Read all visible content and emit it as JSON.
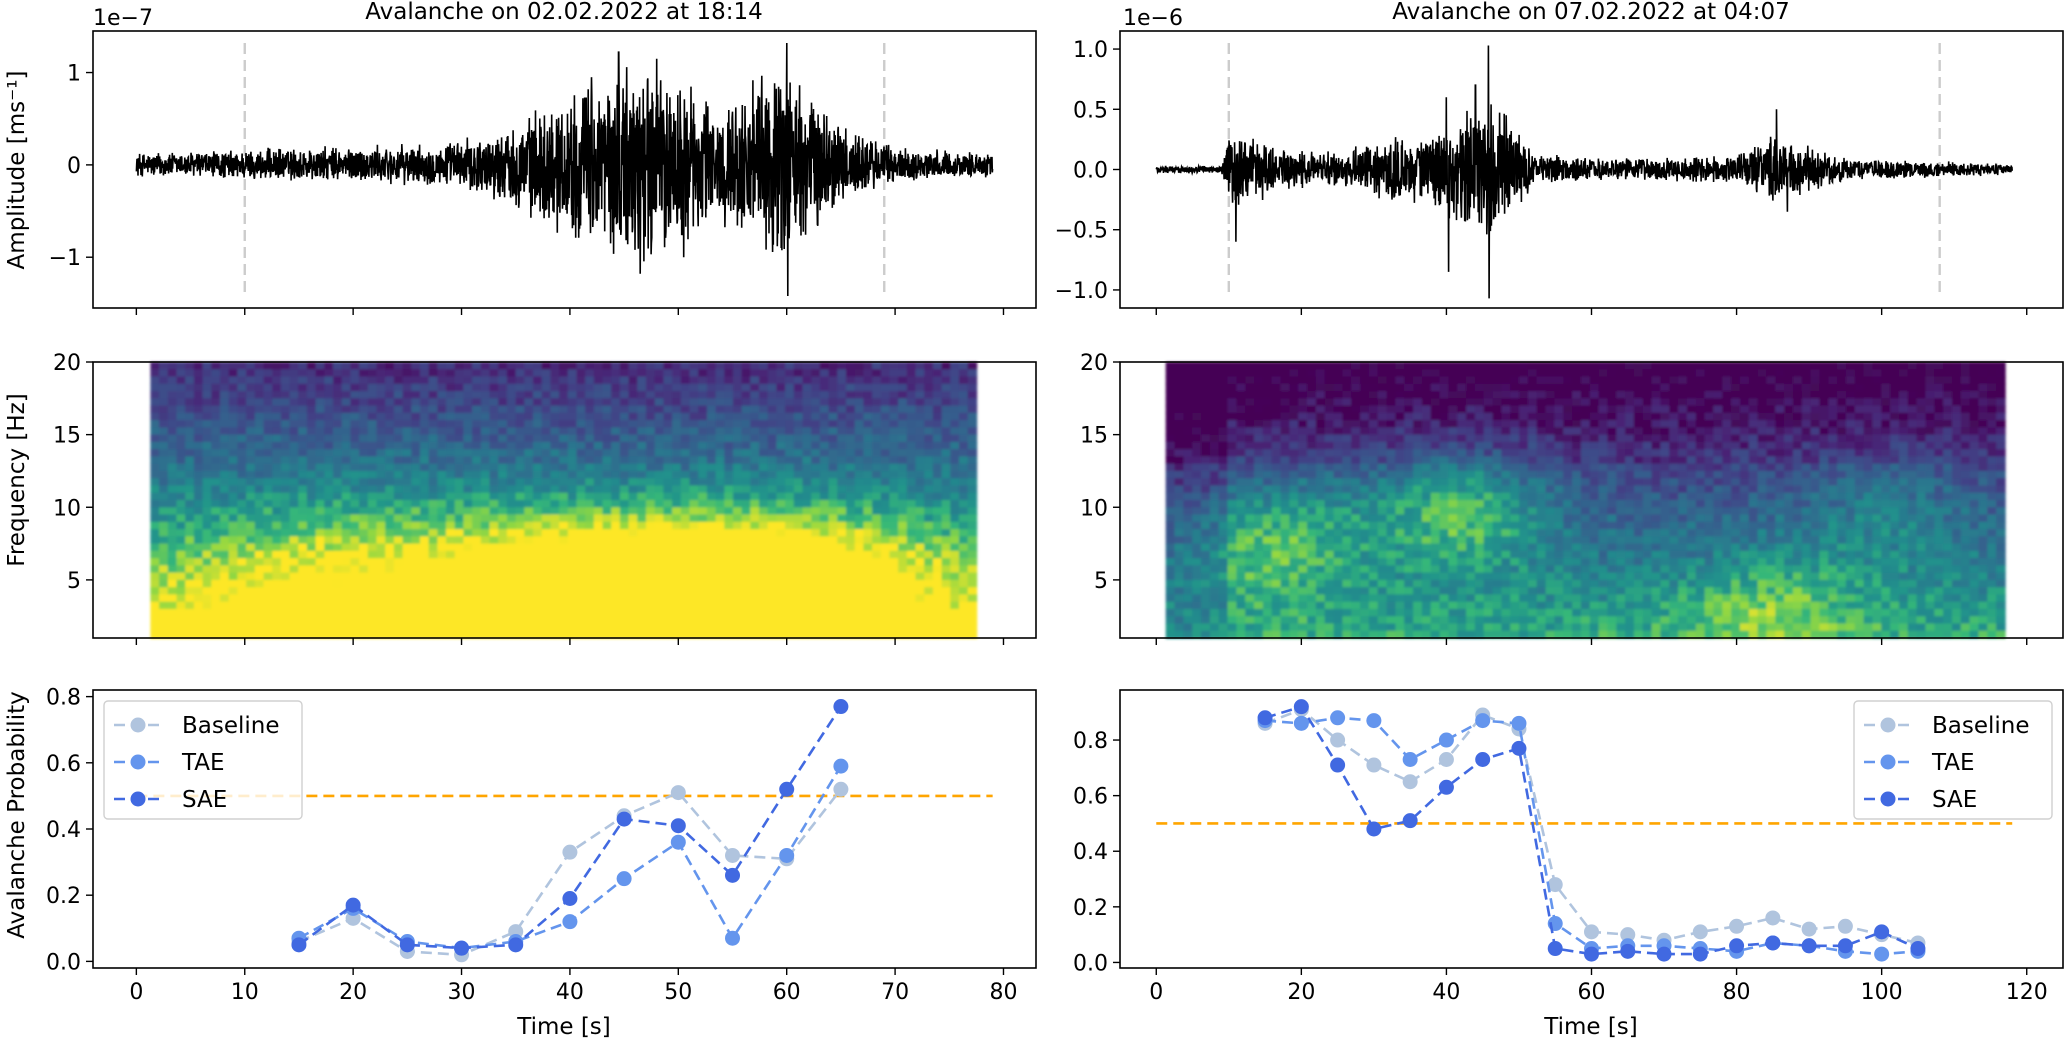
{
  "chart_data": [
    {
      "type": "line",
      "panel": "waveform-left",
      "title": "Avalanche on 02.02.2022 at 18:14",
      "ylabel": "Amplitude [ms⁻¹]",
      "offset_text": "1e−7",
      "xlim": [
        -4,
        83
      ],
      "ylim": [
        -1.55,
        1.45
      ],
      "xticks": [
        0,
        10,
        20,
        30,
        40,
        50,
        60,
        70,
        80
      ],
      "yticks": [
        -1,
        0,
        1
      ],
      "ytick_labels": [
        "−1",
        "0",
        "1"
      ],
      "trace_duration": 79,
      "event_markers": [
        10,
        69
      ],
      "envelope": [
        [
          0,
          0.12
        ],
        [
          8,
          0.14
        ],
        [
          12,
          0.16
        ],
        [
          20,
          0.18
        ],
        [
          28,
          0.2
        ],
        [
          34,
          0.35
        ],
        [
          38,
          0.6
        ],
        [
          42,
          0.8
        ],
        [
          46,
          1.0
        ],
        [
          50,
          0.85
        ],
        [
          54,
          0.55
        ],
        [
          58,
          0.9
        ],
        [
          60,
          1.05
        ],
        [
          62,
          0.7
        ],
        [
          66,
          0.35
        ],
        [
          70,
          0.18
        ],
        [
          74,
          0.14
        ],
        [
          79,
          0.12
        ]
      ],
      "peaks": [
        [
          44.5,
          1.22
        ],
        [
          46.5,
          -1.18
        ],
        [
          60.0,
          1.32
        ],
        [
          60.1,
          -1.42
        ],
        [
          48.0,
          1.15
        ],
        [
          50.5,
          -1.0
        ],
        [
          42.0,
          0.95
        ]
      ]
    },
    {
      "type": "line",
      "panel": "waveform-right",
      "title": "Avalanche on 07.02.2022 at 04:07",
      "offset_text": "1e−6",
      "xlim": [
        -5,
        125
      ],
      "ylim": [
        -1.15,
        1.15
      ],
      "xticks": [
        0,
        20,
        40,
        60,
        80,
        100,
        120
      ],
      "yticks": [
        -1.0,
        -0.5,
        0.0,
        0.5,
        1.0
      ],
      "ytick_labels": [
        "−1.0",
        "−0.5",
        "0.0",
        "0.5",
        "1.0"
      ],
      "trace_duration": 118,
      "event_markers": [
        10,
        108
      ],
      "envelope": [
        [
          0,
          0.03
        ],
        [
          9,
          0.03
        ],
        [
          10.5,
          0.35
        ],
        [
          13,
          0.25
        ],
        [
          18,
          0.15
        ],
        [
          25,
          0.13
        ],
        [
          30,
          0.2
        ],
        [
          36,
          0.25
        ],
        [
          40,
          0.35
        ],
        [
          43,
          0.45
        ],
        [
          46,
          0.55
        ],
        [
          50,
          0.3
        ],
        [
          52,
          0.12
        ],
        [
          60,
          0.08
        ],
        [
          80,
          0.1
        ],
        [
          85,
          0.28
        ],
        [
          88,
          0.2
        ],
        [
          95,
          0.08
        ],
        [
          108,
          0.06
        ],
        [
          118,
          0.04
        ]
      ],
      "peaks": [
        [
          40.0,
          0.6
        ],
        [
          40.3,
          -0.85
        ],
        [
          45.8,
          1.03
        ],
        [
          45.9,
          -1.07
        ],
        [
          44.0,
          0.7
        ],
        [
          11.0,
          -0.6
        ],
        [
          85.5,
          0.5
        ],
        [
          87.0,
          -0.35
        ]
      ]
    },
    {
      "type": "heatmap",
      "panel": "spectrogram-left",
      "ylabel": "Frequency [Hz]",
      "xlim": [
        -4,
        83
      ],
      "ylim": [
        1,
        20
      ],
      "xticks": [
        0,
        10,
        20,
        30,
        40,
        50,
        60,
        70,
        80
      ],
      "yticks": [
        5,
        10,
        15,
        20
      ],
      "data_x_range": [
        1.3,
        77.5
      ],
      "colormap": "viridis",
      "energy_blobs": [
        [
          47,
          4,
          3.2
        ],
        [
          62,
          5,
          2.2
        ],
        [
          20,
          6,
          1.0
        ],
        [
          10,
          3,
          0.8
        ],
        [
          35,
          5,
          1.0
        ]
      ]
    },
    {
      "type": "heatmap",
      "panel": "spectrogram-right",
      "xlim": [
        -5,
        125
      ],
      "ylim": [
        1,
        20
      ],
      "xticks": [
        0,
        20,
        40,
        60,
        80,
        100,
        120
      ],
      "yticks": [
        5,
        10,
        15,
        20
      ],
      "data_x_range": [
        1.3,
        117
      ],
      "colormap": "viridis",
      "energy_blobs": [
        [
          42,
          10,
          2.2
        ],
        [
          20,
          9,
          1.2
        ],
        [
          12,
          7,
          1.0
        ],
        [
          85,
          3,
          1.2
        ],
        [
          100,
          10,
          0.9
        ]
      ]
    },
    {
      "type": "line",
      "panel": "probability-left",
      "xlabel": "Time [s]",
      "ylabel": "Avalanche Probability",
      "xlim": [
        -4,
        83
      ],
      "ylim": [
        -0.02,
        0.82
      ],
      "xticks": [
        0,
        10,
        20,
        30,
        40,
        50,
        60,
        70,
        80
      ],
      "yticks": [
        0.0,
        0.2,
        0.4,
        0.6,
        0.8
      ],
      "ytick_labels": [
        "0.0",
        "0.2",
        "0.4",
        "0.6",
        "0.8"
      ],
      "threshold": 0.5,
      "threshold_range": [
        0,
        79
      ],
      "legend_position": "upper-left",
      "x": [
        15,
        20,
        25,
        30,
        35,
        40,
        45,
        50,
        55,
        60,
        65
      ],
      "series": [
        {
          "name": "Baseline",
          "color": "#b0c4de",
          "values": [
            0.06,
            0.13,
            0.03,
            0.02,
            0.09,
            0.33,
            0.44,
            0.51,
            0.32,
            0.31,
            0.52
          ]
        },
        {
          "name": "TAE",
          "color": "#6495ed",
          "values": [
            0.07,
            0.16,
            0.06,
            0.04,
            0.06,
            0.12,
            0.25,
            0.36,
            0.07,
            0.32,
            0.59
          ]
        },
        {
          "name": "SAE",
          "color": "#4169e1",
          "values": [
            0.05,
            0.17,
            0.05,
            0.04,
            0.05,
            0.19,
            0.43,
            0.41,
            0.26,
            0.52,
            0.77
          ]
        }
      ]
    },
    {
      "type": "line",
      "panel": "probability-right",
      "xlabel": "Time [s]",
      "xlim": [
        -5,
        125
      ],
      "ylim": [
        -0.02,
        0.98
      ],
      "xticks": [
        0,
        20,
        40,
        60,
        80,
        100,
        120
      ],
      "yticks": [
        0.0,
        0.2,
        0.4,
        0.6,
        0.8
      ],
      "ytick_labels": [
        "0.0",
        "0.2",
        "0.4",
        "0.6",
        "0.8"
      ],
      "threshold": 0.5,
      "threshold_range": [
        0,
        118
      ],
      "legend_position": "upper-right",
      "x": [
        15,
        20,
        25,
        30,
        35,
        40,
        45,
        50,
        55,
        60,
        65,
        70,
        75,
        80,
        85,
        90,
        95,
        100,
        105
      ],
      "series": [
        {
          "name": "Baseline",
          "color": "#b0c4de",
          "values": [
            0.86,
            0.91,
            0.8,
            0.71,
            0.65,
            0.73,
            0.89,
            0.84,
            0.28,
            0.11,
            0.1,
            0.08,
            0.11,
            0.13,
            0.16,
            0.12,
            0.13,
            0.1,
            0.07
          ]
        },
        {
          "name": "TAE",
          "color": "#6495ed",
          "values": [
            0.87,
            0.86,
            0.88,
            0.87,
            0.73,
            0.8,
            0.87,
            0.86,
            0.14,
            0.05,
            0.06,
            0.06,
            0.05,
            0.04,
            0.07,
            0.06,
            0.04,
            0.03,
            0.04
          ]
        },
        {
          "name": "SAE",
          "color": "#4169e1",
          "values": [
            0.88,
            0.92,
            0.71,
            0.48,
            0.51,
            0.63,
            0.73,
            0.77,
            0.05,
            0.03,
            0.04,
            0.03,
            0.03,
            0.06,
            0.07,
            0.06,
            0.06,
            0.11,
            0.05
          ]
        }
      ]
    }
  ],
  "colors": {
    "trace": "#000000",
    "marker_line": "#cccccc",
    "threshold": "#ffa500"
  }
}
